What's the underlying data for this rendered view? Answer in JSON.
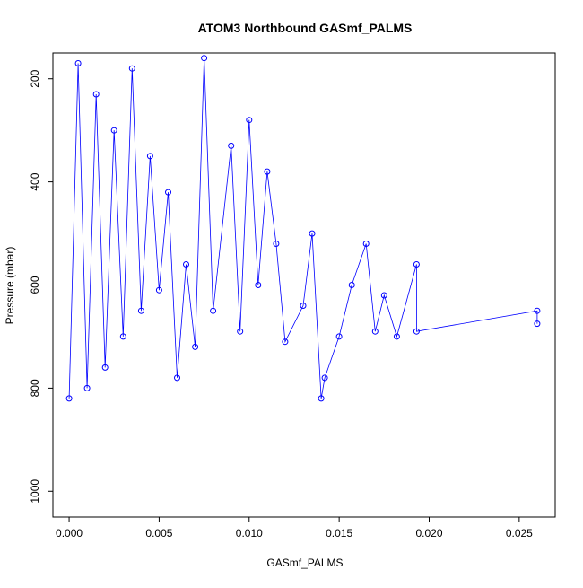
{
  "chart_data": {
    "type": "scatter",
    "title": "ATOM3 Northbound GASmf_PALMS",
    "xlabel": "GASmf_PALMS",
    "ylabel": "Pressure (mbar)",
    "xlim": [
      -0.0009,
      0.027
    ],
    "ylim": [
      1050,
      150
    ],
    "y_inverted": true,
    "grid": false,
    "x_ticks": [
      "0.000",
      "0.005",
      "0.010",
      "0.015",
      "0.020",
      "0.025"
    ],
    "y_ticks": [
      "200",
      "400",
      "600",
      "800",
      "1000"
    ],
    "series": [
      {
        "color": "#0000ff",
        "marker": "open-circle",
        "connected": true,
        "x": [
          0.0,
          0.0005,
          0.001,
          0.0015,
          0.002,
          0.0025,
          0.003,
          0.0035,
          0.004,
          0.0045,
          0.005,
          0.0055,
          0.006,
          0.0065,
          0.007,
          0.0075,
          0.008,
          0.009,
          0.0095,
          0.01,
          0.0105,
          0.011,
          0.0115,
          0.012,
          0.013,
          0.0135,
          0.014,
          0.0142,
          0.015,
          0.0157,
          0.0165,
          0.017,
          0.0175,
          0.0182,
          0.0193,
          0.0193,
          0.026,
          0.026
        ],
        "y": [
          820,
          170,
          800,
          230,
          760,
          300,
          700,
          180,
          650,
          350,
          610,
          420,
          780,
          560,
          720,
          160,
          650,
          330,
          690,
          280,
          600,
          380,
          520,
          710,
          640,
          500,
          820,
          780,
          700,
          600,
          520,
          690,
          620,
          700,
          560,
          690,
          650,
          675
        ]
      }
    ]
  }
}
